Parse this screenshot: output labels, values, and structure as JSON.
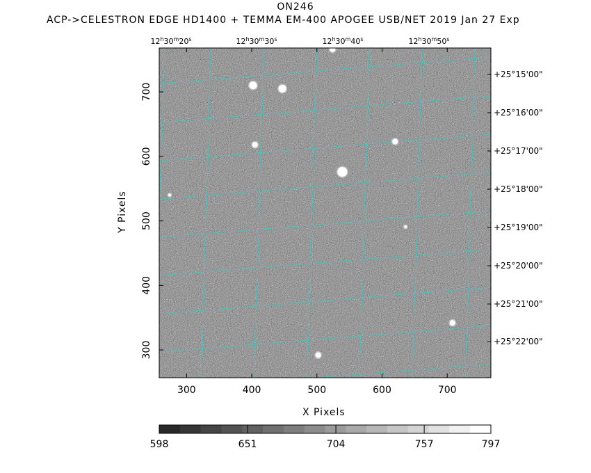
{
  "header": {
    "title": "ON246",
    "subtitle": "ACP->CELESTRON EDGE HD1400 + TEMMA EM-400 APOGEE USB/NET   2019 Jan 27    Exp"
  },
  "chart_data": {
    "type": "heatmap",
    "title": "ON246",
    "xlabel": "X Pixels",
    "ylabel": "Y Pixels",
    "xlim": [
      258,
      767
    ],
    "ylim": [
      257,
      768
    ],
    "x_ticks": [
      300,
      400,
      500,
      600,
      700
    ],
    "y_ticks": [
      300,
      400,
      500,
      600,
      700
    ],
    "ra_ticks": [
      {
        "h": "12",
        "m": "30",
        "s": "20"
      },
      {
        "h": "12",
        "m": "30",
        "s": "30"
      },
      {
        "h": "12",
        "m": "30",
        "s": "40"
      },
      {
        "h": "12",
        "m": "30",
        "s": "50"
      }
    ],
    "dec_ticks": [
      "+25°15'00\"",
      "+25°16'00\"",
      "+25°17'00\"",
      "+25°18'00\"",
      "+25°19'00\"",
      "+25°20'00\"",
      "+25°21'00\"",
      "+25°22'00\""
    ],
    "colorbar": {
      "range": [
        598,
        797
      ],
      "labels": [
        "598",
        "651",
        "704",
        "757",
        "797"
      ],
      "steps": 16
    },
    "stars": [
      {
        "x": 402,
        "y": 710,
        "mag": "bright"
      },
      {
        "x": 447,
        "y": 705,
        "mag": "bright"
      },
      {
        "x": 539,
        "y": 576,
        "mag": "brightest"
      },
      {
        "x": 405,
        "y": 618,
        "mag": "medium"
      },
      {
        "x": 620,
        "y": 623,
        "mag": "medium"
      },
      {
        "x": 524,
        "y": 766,
        "mag": "medium"
      },
      {
        "x": 708,
        "y": 342,
        "mag": "medium"
      },
      {
        "x": 502,
        "y": 292,
        "mag": "medium"
      },
      {
        "x": 636,
        "y": 491,
        "mag": "faint"
      },
      {
        "x": 274,
        "y": 540,
        "mag": "faint"
      }
    ],
    "grid_color": "#3fc7c7",
    "grid": true
  }
}
